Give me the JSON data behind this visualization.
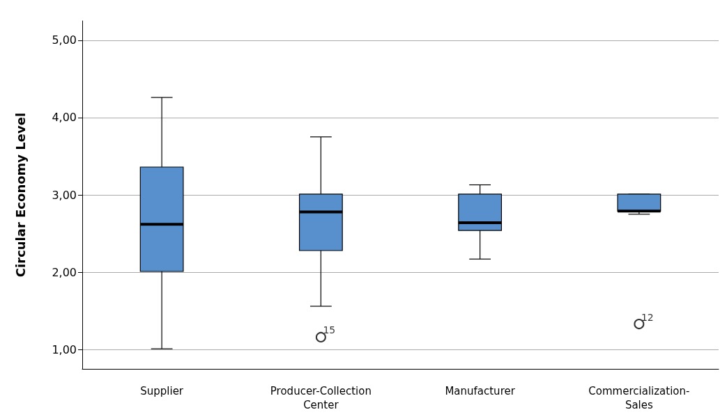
{
  "chart_data": {
    "type": "box",
    "ylabel": "Circular Economy Level",
    "categories": [
      "Supplier",
      "Producer-Collection\nCenter",
      "Manufacturer",
      "Commercialization-\nSales"
    ],
    "boxes": [
      {
        "low": 1.01,
        "q1": 2.01,
        "median": 2.62,
        "q3": 3.36,
        "high": 4.26
      },
      {
        "low": 1.56,
        "q1": 2.28,
        "median": 2.78,
        "q3": 3.01,
        "high": 3.75,
        "outliers": [
          1.16
        ]
      },
      {
        "low": 2.17,
        "q1": 2.54,
        "median": 2.64,
        "q3": 3.01,
        "high": 3.13
      },
      {
        "low": 2.75,
        "q1": 2.79,
        "median": 2.79,
        "q3": 3.01,
        "high": 3.01,
        "outliers": [
          1.33
        ]
      }
    ],
    "color": "#5790cc",
    "ylim": [
      0.75,
      5.25
    ],
    "yticks": [
      {
        "value": 1,
        "label": "1,00"
      },
      {
        "value": 2,
        "label": "2,00"
      },
      {
        "value": 3,
        "label": "3,00"
      },
      {
        "value": 4,
        "label": "4,00"
      },
      {
        "value": 5,
        "label": "5,00"
      }
    ],
    "grid": "y",
    "annotations": [
      "15",
      "12"
    ]
  }
}
